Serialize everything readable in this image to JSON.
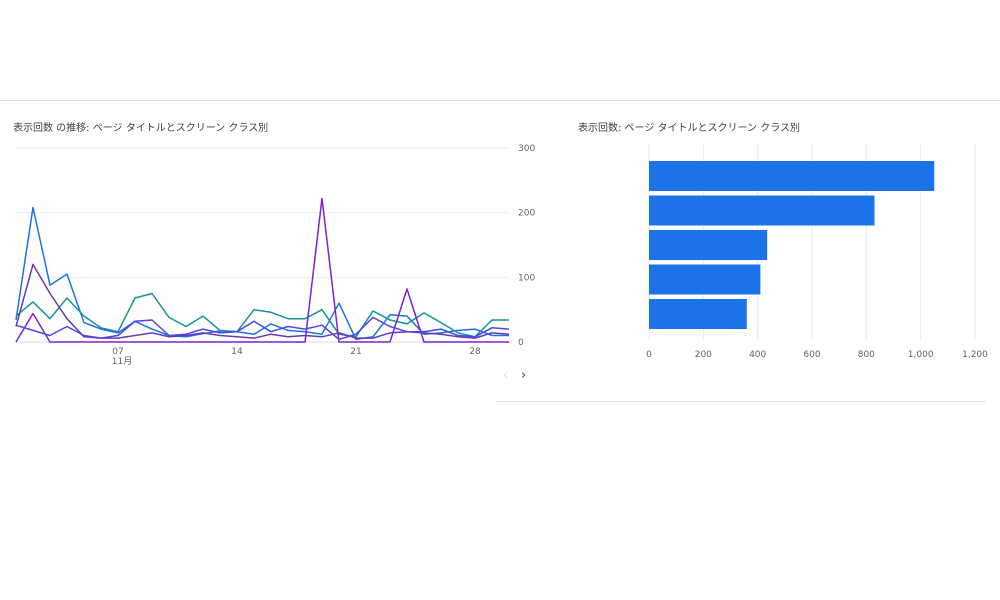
{
  "line_card": {
    "title": "表示回数 の推移: ページ タイトルとスクリーン クラス別"
  },
  "bar_card": {
    "title": "表示回数: ページ タイトルとスクリーン クラス別"
  },
  "pager": {
    "prev": "‹",
    "next": "›"
  },
  "chart_data": [
    {
      "type": "line",
      "title": "表示回数 の推移: ページ タイトルとスクリーン クラス別",
      "x": [
        1,
        2,
        3,
        4,
        5,
        6,
        7,
        8,
        9,
        10,
        11,
        12,
        13,
        14,
        15,
        16,
        17,
        18,
        19,
        20,
        21,
        22,
        23,
        24,
        25,
        26,
        27,
        28,
        29,
        30
      ],
      "x_ticks": [
        {
          "x": 7,
          "label": "07",
          "sublabel": "11月"
        },
        {
          "x": 14,
          "label": "14"
        },
        {
          "x": 21,
          "label": "21"
        },
        {
          "x": 28,
          "label": "28"
        }
      ],
      "y_ticks": [
        0,
        100,
        200,
        300
      ],
      "y_axis_side": "right",
      "ylim": [
        0,
        300
      ],
      "grid": true,
      "series": [
        {
          "color": "#1a73e8",
          "values": [
            34,
            208,
            88,
            105,
            30,
            20,
            14,
            32,
            20,
            10,
            8,
            13,
            17,
            16,
            12,
            28,
            18,
            16,
            12,
            60,
            4,
            8,
            42,
            40,
            12,
            14,
            18,
            20,
            10,
            10
          ]
        },
        {
          "color": "#12939a",
          "values": [
            40,
            62,
            36,
            68,
            40,
            22,
            16,
            68,
            75,
            38,
            24,
            40,
            18,
            16,
            50,
            46,
            36,
            36,
            50,
            12,
            8,
            48,
            34,
            28,
            45,
            30,
            14,
            8,
            34,
            34
          ]
        },
        {
          "color": "#673ab7",
          "values": [
            24,
            120,
            75,
            36,
            8,
            6,
            6,
            10,
            14,
            8,
            10,
            14,
            10,
            8,
            6,
            12,
            8,
            10,
            8,
            14,
            6,
            6,
            14,
            16,
            14,
            12,
            8,
            6,
            14,
            12
          ]
        },
        {
          "color": "#7e22ce",
          "values": [
            0,
            44,
            0,
            0,
            0,
            0,
            0,
            0,
            0,
            0,
            0,
            0,
            0,
            0,
            0,
            0,
            0,
            0,
            222,
            0,
            0,
            0,
            0,
            82,
            0,
            0,
            0,
            0,
            0,
            0
          ]
        },
        {
          "color": "#4f46e5",
          "values": [
            26,
            18,
            10,
            24,
            10,
            6,
            10,
            32,
            34,
            10,
            12,
            20,
            14,
            16,
            32,
            16,
            24,
            20,
            26,
            4,
            12,
            38,
            24,
            16,
            16,
            20,
            10,
            8,
            22,
            20
          ]
        }
      ]
    },
    {
      "type": "bar",
      "orientation": "horizontal",
      "title": "表示回数: ページ タイトルとスクリーン クラス別",
      "values": [
        1050,
        830,
        435,
        410,
        360
      ],
      "x_ticks": [
        0,
        200,
        400,
        600,
        800,
        1000,
        1200
      ],
      "x_tick_labels": [
        "0",
        "200",
        "400",
        "600",
        "800",
        "1,000",
        "1,200"
      ],
      "xlim": [
        0,
        1200
      ],
      "grid": true,
      "color": "#1a73e8"
    }
  ]
}
